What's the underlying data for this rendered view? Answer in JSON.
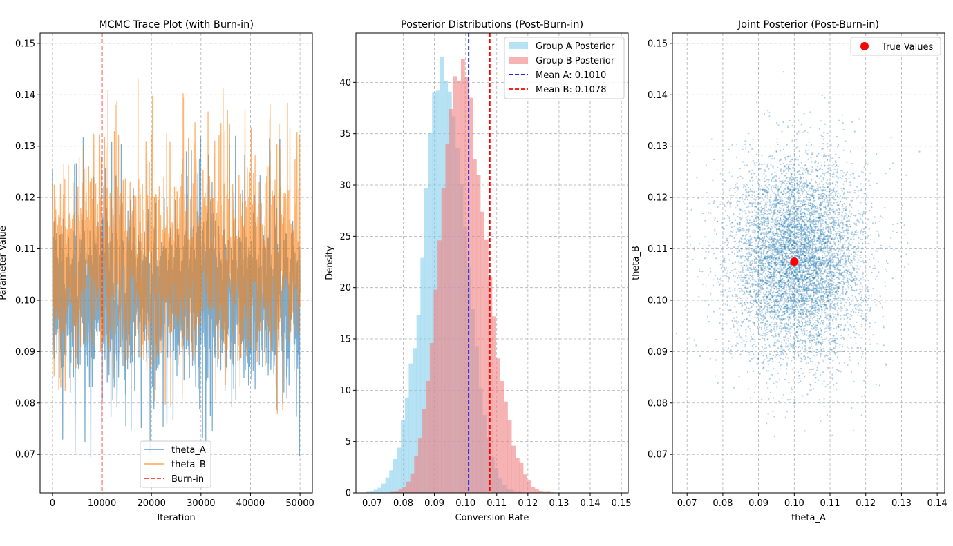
{
  "chart_data": [
    {
      "type": "line",
      "title": "MCMC Trace Plot (with Burn-in)",
      "xlabel": "Iteration",
      "ylabel": "Parameter Value",
      "xlim": [
        -2500,
        52500
      ],
      "ylim": [
        0.0625,
        0.152
      ],
      "xticks": [
        0,
        10000,
        20000,
        30000,
        40000,
        50000
      ],
      "yticks": [
        0.07,
        0.08,
        0.09,
        0.1,
        0.11,
        0.12,
        0.13,
        0.14,
        0.15
      ],
      "grid": true,
      "legend_position": "lower-center",
      "series": [
        {
          "name": "theta_A",
          "color": "#1f77b4",
          "alpha": 0.6,
          "center": 0.101,
          "band_low": 0.084,
          "band_high": 0.121,
          "min": 0.0695,
          "max": 0.137,
          "n_iterations": 50000
        },
        {
          "name": "theta_B",
          "color": "#ff7f0e",
          "alpha": 0.6,
          "center": 0.1078,
          "band_low": 0.089,
          "band_high": 0.128,
          "min": 0.0665,
          "max": 0.145,
          "n_iterations": 50000
        }
      ],
      "vlines": [
        {
          "name": "Burn-in",
          "x": 10000,
          "color": "#ff0000",
          "style": "dashed"
        }
      ]
    },
    {
      "type": "histogram",
      "title": "Posterior Distributions (Post-Burn-in)",
      "xlabel": "Conversion Rate",
      "ylabel": "Density",
      "xlim": [
        0.0648,
        0.1522
      ],
      "ylim": [
        0,
        44.8
      ],
      "xticks": [
        0.07,
        0.08,
        0.09,
        0.1,
        0.11,
        0.12,
        0.13,
        0.14,
        0.15
      ],
      "yticks": [
        0,
        5,
        10,
        15,
        20,
        25,
        30,
        35,
        40
      ],
      "grid": true,
      "legend_position": "top-right",
      "bin_width": 0.00125,
      "series": [
        {
          "name": "Group A Posterior",
          "color": "#87ceeb",
          "alpha": 0.6,
          "bins_start": 0.068,
          "values": [
            0.1,
            0.2,
            0.3,
            0.5,
            0.9,
            1.5,
            2.2,
            3.3,
            4.4,
            7.1,
            9.3,
            12.6,
            14.1,
            17.3,
            22.9,
            29.7,
            35.1,
            39.0,
            39.2,
            42.5,
            40.1,
            39.1,
            36.7,
            33.6,
            30.1,
            25.9,
            22.0,
            17.9,
            14.3,
            10.2,
            7.6,
            5.4,
            3.5,
            2.4,
            1.4,
            0.8,
            0.4,
            0.3,
            0.1,
            0.1
          ]
        },
        {
          "name": "Group B Posterior",
          "color": "#f08080",
          "alpha": 0.6,
          "bins_start": 0.076,
          "values": [
            0.1,
            0.2,
            0.4,
            0.6,
            1.1,
            1.9,
            3.6,
            5.3,
            8.2,
            10.9,
            14.6,
            19.8,
            24.6,
            29.7,
            34.0,
            37.4,
            40.6,
            40.1,
            42.3,
            40.5,
            38.5,
            32.5,
            31.0,
            27.4,
            24.7,
            21.0,
            17.2,
            13.1,
            10.9,
            8.9,
            7.1,
            4.6,
            3.4,
            2.9,
            1.8,
            1.2,
            0.6,
            0.4,
            0.2,
            0.1,
            0.1,
            0.05
          ]
        }
      ],
      "vlines": [
        {
          "name": "Mean A: 0.1010",
          "x": 0.101,
          "color": "#0000ff",
          "style": "dashed"
        },
        {
          "name": "Mean B: 0.1078",
          "x": 0.1078,
          "color": "#ff0000",
          "style": "dashed"
        }
      ]
    },
    {
      "type": "scatter",
      "title": "Joint Posterior (Post-Burn-in)",
      "xlabel": "theta_A",
      "ylabel": "theta_B",
      "xlim": [
        0.0659,
        0.1421
      ],
      "ylim": [
        0.0625,
        0.152
      ],
      "xticks": [
        0.07,
        0.08,
        0.09,
        0.1,
        0.11,
        0.12,
        0.13,
        0.14
      ],
      "yticks": [
        0.07,
        0.08,
        0.09,
        0.1,
        0.11,
        0.12,
        0.13,
        0.14,
        0.15
      ],
      "grid": true,
      "legend_position": "top-right",
      "samples": {
        "name": "posterior samples",
        "color": "#1f77b4",
        "mean_x": 0.101,
        "mean_y": 0.1078,
        "sd_x": 0.0094,
        "sd_y": 0.0097
      },
      "highlight": {
        "name": "True Values",
        "x": 0.1,
        "y": 0.1075,
        "color": "#ff0000"
      }
    }
  ]
}
